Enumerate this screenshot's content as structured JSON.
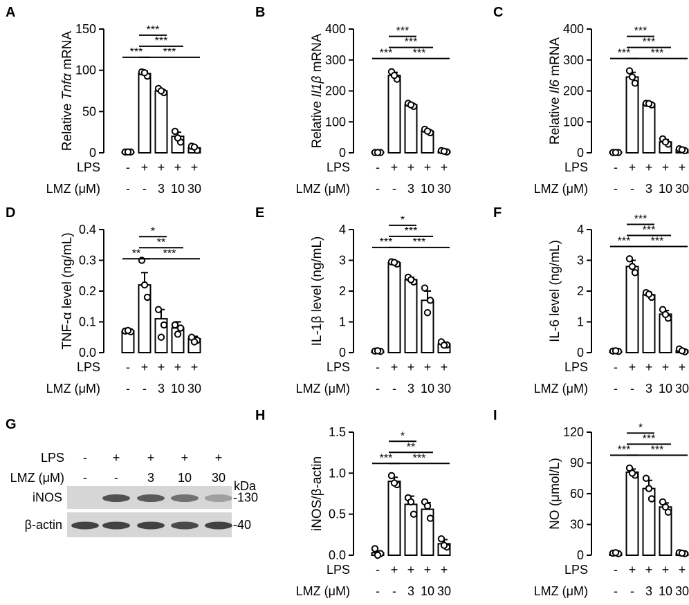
{
  "figure": {
    "row_labels": {
      "lps": "LPS",
      "lmz": "LMZ (μM)"
    },
    "conditions": [
      {
        "lps": "-",
        "lmz": "-"
      },
      {
        "lps": "+",
        "lmz": "-"
      },
      {
        "lps": "+",
        "lmz": "3"
      },
      {
        "lps": "+",
        "lmz": "10"
      },
      {
        "lps": "+",
        "lmz": "30"
      }
    ]
  },
  "western_blot": {
    "panel": "G",
    "lps_label": "LPS",
    "lmz_label": "LMZ (μM)",
    "lps_values": [
      "-",
      "+",
      "+",
      "+",
      "+"
    ],
    "lmz_values": [
      "-",
      "-",
      "3",
      "10",
      "30"
    ],
    "kda_label": "kDa",
    "proteins": [
      {
        "name": "iNOS",
        "kda": "-130",
        "band_intensity": [
          0.0,
          0.85,
          0.8,
          0.65,
          0.35
        ]
      },
      {
        "name": "β-actin",
        "kda": "-40",
        "band_intensity": [
          0.95,
          0.95,
          0.95,
          0.9,
          0.95
        ]
      }
    ]
  },
  "chart_data": [
    {
      "panel": "A",
      "type": "bar",
      "ylabel_pre": "Relative ",
      "ylabel_ital": "Tnfα",
      "ylabel_post": " mRNA",
      "ylim": [
        0,
        150
      ],
      "yticks": [
        0,
        50,
        100,
        150
      ],
      "categories": [
        "LPS- LMZ-",
        "LPS+ LMZ-",
        "LPS+ LMZ 3",
        "LPS+ LMZ 10",
        "LPS+ LMZ 30"
      ],
      "values": [
        1,
        96,
        75,
        20,
        6
      ],
      "errors": [
        0.3,
        3,
        2,
        5,
        2
      ],
      "points": [
        [
          1,
          1,
          1
        ],
        [
          98,
          93,
          97
        ],
        [
          78,
          73,
          75
        ],
        [
          26,
          13,
          18
        ],
        [
          8,
          3,
          7
        ]
      ],
      "significance": [
        {
          "from": 0,
          "to": 1,
          "label": "***"
        },
        {
          "from": 1,
          "to": 2,
          "label": "***"
        },
        {
          "from": 1,
          "to": 3,
          "label": "***"
        },
        {
          "from": 1,
          "to": 4,
          "label": "***"
        }
      ]
    },
    {
      "panel": "B",
      "type": "bar",
      "ylabel_pre": "Relative ",
      "ylabel_ital": "Il1β",
      "ylabel_post": " mRNA",
      "ylim": [
        0,
        400
      ],
      "yticks": [
        0,
        100,
        200,
        300,
        400
      ],
      "categories": [
        "LPS- LMZ-",
        "LPS+ LMZ-",
        "LPS+ LMZ 3",
        "LPS+ LMZ 10",
        "LPS+ LMZ 30"
      ],
      "values": [
        1,
        250,
        155,
        70,
        5
      ],
      "errors": [
        0.5,
        10,
        5,
        5,
        2
      ],
      "points": [
        [
          1,
          1,
          1
        ],
        [
          262,
          238,
          250
        ],
        [
          160,
          150,
          155
        ],
        [
          76,
          65,
          70
        ],
        [
          7,
          3,
          5
        ]
      ],
      "significance": [
        {
          "from": 0,
          "to": 1,
          "label": "***"
        },
        {
          "from": 1,
          "to": 2,
          "label": "***"
        },
        {
          "from": 1,
          "to": 3,
          "label": "***"
        },
        {
          "from": 1,
          "to": 4,
          "label": "***"
        }
      ]
    },
    {
      "panel": "C",
      "type": "bar",
      "ylabel_pre": "Relative ",
      "ylabel_ital": "Il6",
      "ylabel_post": " mRNA",
      "ylim": [
        0,
        400
      ],
      "yticks": [
        0,
        100,
        200,
        300,
        400
      ],
      "categories": [
        "LPS- LMZ-",
        "LPS+ LMZ-",
        "LPS+ LMZ 3",
        "LPS+ LMZ 10",
        "LPS+ LMZ 30"
      ],
      "values": [
        1,
        245,
        158,
        35,
        10
      ],
      "errors": [
        0.5,
        15,
        3,
        8,
        3
      ],
      "points": [
        [
          1,
          1,
          1
        ],
        [
          265,
          225,
          245
        ],
        [
          160,
          155,
          159
        ],
        [
          45,
          28,
          35
        ],
        [
          13,
          7,
          10
        ]
      ],
      "significance": [
        {
          "from": 0,
          "to": 1,
          "label": "***"
        },
        {
          "from": 1,
          "to": 2,
          "label": "***"
        },
        {
          "from": 1,
          "to": 3,
          "label": "***"
        },
        {
          "from": 1,
          "to": 4,
          "label": "***"
        }
      ]
    },
    {
      "panel": "D",
      "type": "bar",
      "ylabel_pre": "TNF-α level (ng/mL)",
      "ylabel_ital": "",
      "ylabel_post": "",
      "ylim": [
        0,
        0.4
      ],
      "yticks": [
        0.0,
        0.1,
        0.2,
        0.3,
        0.4
      ],
      "categories": [
        "LPS- LMZ-",
        "LPS+ LMZ-",
        "LPS+ LMZ 3",
        "LPS+ LMZ 10",
        "LPS+ LMZ 30"
      ],
      "values": [
        0.07,
        0.22,
        0.11,
        0.08,
        0.045
      ],
      "errors": [
        0.003,
        0.04,
        0.03,
        0.02,
        0.008
      ],
      "points": [
        [
          0.07,
          0.068,
          0.072
        ],
        [
          0.3,
          0.18,
          0.22
        ],
        [
          0.14,
          0.09,
          0.05
        ],
        [
          0.09,
          0.08,
          0.06
        ],
        [
          0.05,
          0.04,
          0.035
        ]
      ],
      "significance": [
        {
          "from": 0,
          "to": 1,
          "label": "**"
        },
        {
          "from": 1,
          "to": 2,
          "label": "*"
        },
        {
          "from": 1,
          "to": 3,
          "label": "**"
        },
        {
          "from": 1,
          "to": 4,
          "label": "***"
        }
      ]
    },
    {
      "panel": "E",
      "type": "bar",
      "ylabel_pre": "IL-1β level (ng/mL)",
      "ylabel_ital": "",
      "ylabel_post": "",
      "ylim": [
        0,
        4
      ],
      "yticks": [
        0,
        1,
        2,
        3,
        4
      ],
      "categories": [
        "LPS- LMZ-",
        "LPS+ LMZ-",
        "LPS+ LMZ 3",
        "LPS+ LMZ 10",
        "LPS+ LMZ 30"
      ],
      "values": [
        0.05,
        2.92,
        2.37,
        1.7,
        0.28
      ],
      "errors": [
        0.02,
        0.05,
        0.08,
        0.3,
        0.05
      ],
      "points": [
        [
          0.05,
          0.04,
          0.06
        ],
        [
          2.95,
          2.88,
          2.93
        ],
        [
          2.45,
          2.3,
          2.37
        ],
        [
          2.1,
          1.7,
          1.3
        ],
        [
          0.35,
          0.25,
          0.24
        ]
      ],
      "significance": [
        {
          "from": 0,
          "to": 1,
          "label": "***"
        },
        {
          "from": 1,
          "to": 2,
          "label": "*"
        },
        {
          "from": 1,
          "to": 3,
          "label": "***"
        },
        {
          "from": 1,
          "to": 4,
          "label": "***"
        }
      ]
    },
    {
      "panel": "F",
      "type": "bar",
      "ylabel_pre": "IL-6 level (ng/mL)",
      "ylabel_ital": "",
      "ylabel_post": "",
      "ylim": [
        0,
        4
      ],
      "yticks": [
        0,
        1,
        2,
        3,
        4
      ],
      "categories": [
        "LPS- LMZ-",
        "LPS+ LMZ-",
        "LPS+ LMZ 3",
        "LPS+ LMZ 10",
        "LPS+ LMZ 30"
      ],
      "values": [
        0.05,
        2.8,
        1.88,
        1.25,
        0.07
      ],
      "errors": [
        0.02,
        0.2,
        0.08,
        0.12,
        0.04
      ],
      "points": [
        [
          0.05,
          0.04,
          0.06
        ],
        [
          3.05,
          2.6,
          2.8
        ],
        [
          1.95,
          1.8,
          1.9
        ],
        [
          1.4,
          1.12,
          1.24
        ],
        [
          0.12,
          0.03,
          0.06
        ]
      ],
      "significance": [
        {
          "from": 0,
          "to": 1,
          "label": "***"
        },
        {
          "from": 1,
          "to": 2,
          "label": "***"
        },
        {
          "from": 1,
          "to": 3,
          "label": "***"
        },
        {
          "from": 1,
          "to": 4,
          "label": "***"
        }
      ]
    },
    {
      "panel": "H",
      "type": "bar",
      "ylabel_pre": "iNOS/β-actin",
      "ylabel_ital": "",
      "ylabel_post": "",
      "ylim": [
        0,
        1.5
      ],
      "yticks": [
        0.0,
        0.5,
        1.0,
        1.5
      ],
      "categories": [
        "LPS- LMZ-",
        "LPS+ LMZ-",
        "LPS+ LMZ 3",
        "LPS+ LMZ 10",
        "LPS+ LMZ 30"
      ],
      "values": [
        0.03,
        0.9,
        0.62,
        0.56,
        0.14
      ],
      "errors": [
        0.02,
        0.05,
        0.1,
        0.08,
        0.05
      ],
      "points": [
        [
          0.08,
          0.02,
          0.0
        ],
        [
          0.97,
          0.86,
          0.88
        ],
        [
          0.7,
          0.5,
          0.65
        ],
        [
          0.65,
          0.45,
          0.6
        ],
        [
          0.2,
          0.1,
          0.12
        ]
      ],
      "significance": [
        {
          "from": 0,
          "to": 1,
          "label": "***"
        },
        {
          "from": 1,
          "to": 2,
          "label": "*"
        },
        {
          "from": 1,
          "to": 3,
          "label": "**"
        },
        {
          "from": 1,
          "to": 4,
          "label": "***"
        }
      ]
    },
    {
      "panel": "I",
      "type": "bar",
      "ylabel_pre": "NO (μmol/L)",
      "ylabel_ital": "",
      "ylabel_post": "",
      "ylim": [
        0,
        120
      ],
      "yticks": [
        0,
        30,
        60,
        90,
        120
      ],
      "categories": [
        "LPS- LMZ-",
        "LPS+ LMZ-",
        "LPS+ LMZ 3",
        "LPS+ LMZ 10",
        "LPS+ LMZ 30"
      ],
      "values": [
        2,
        81,
        65,
        47,
        2
      ],
      "errors": [
        0.5,
        3,
        8,
        4,
        0.5
      ],
      "points": [
        [
          2,
          1.5,
          2.5
        ],
        [
          85,
          78,
          80
        ],
        [
          75,
          55,
          65
        ],
        [
          52,
          42,
          47
        ],
        [
          2.5,
          1.5,
          2
        ]
      ],
      "significance": [
        {
          "from": 0,
          "to": 1,
          "label": "***"
        },
        {
          "from": 1,
          "to": 2,
          "label": "*"
        },
        {
          "from": 1,
          "to": 3,
          "label": "***"
        },
        {
          "from": 1,
          "to": 4,
          "label": "***"
        }
      ]
    }
  ]
}
